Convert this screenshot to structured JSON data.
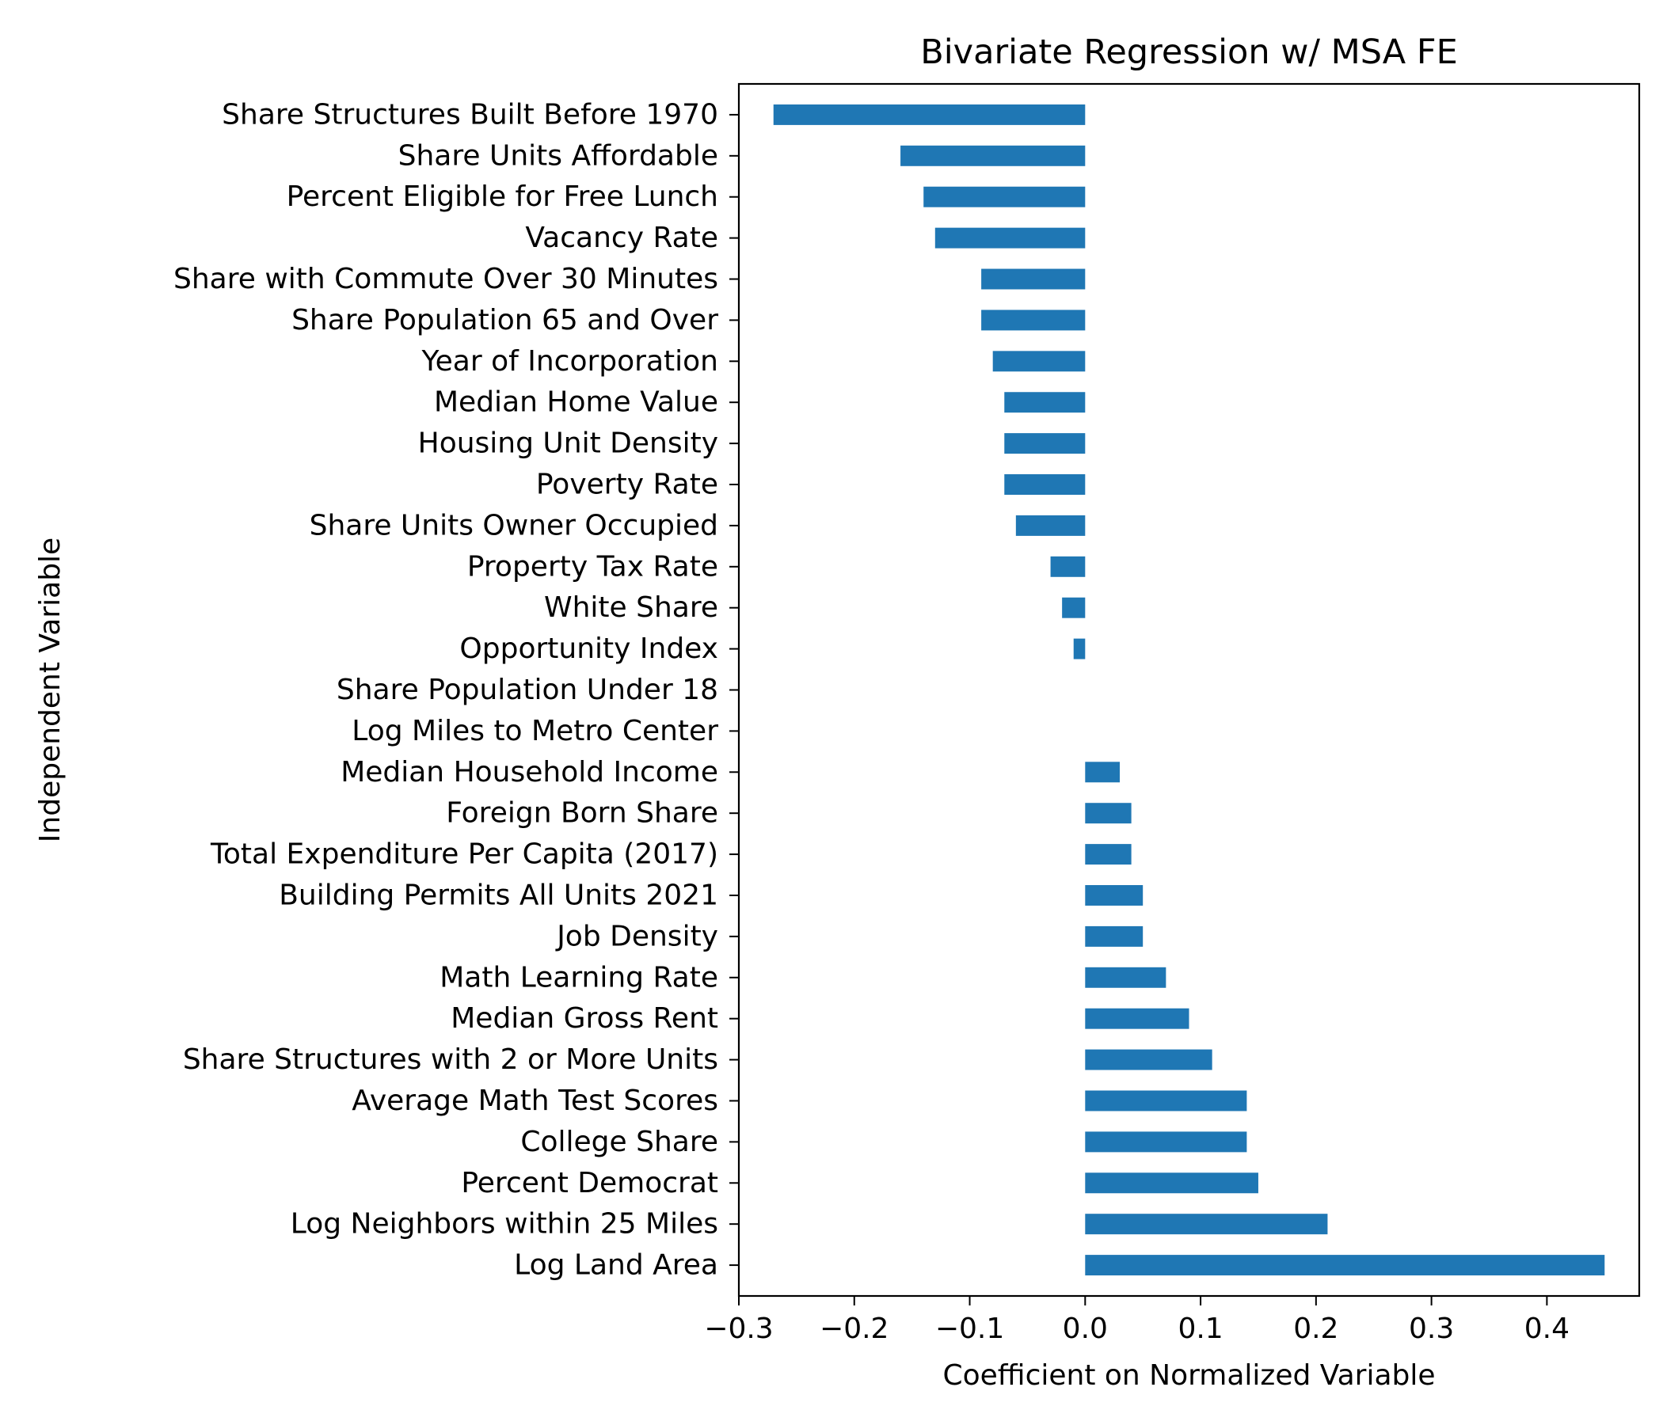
{
  "chart_data": {
    "type": "bar",
    "orientation": "horizontal",
    "title": "Bivariate Regression w/ MSA FE",
    "xlabel": "Coefficient on Normalized Variable",
    "ylabel": "Independent Variable",
    "xlim": [
      -0.3,
      0.48
    ],
    "xticks": [
      -0.3,
      -0.2,
      -0.1,
      0.0,
      0.1,
      0.2,
      0.3,
      0.4
    ],
    "xtick_labels": [
      "−0.3",
      "−0.2",
      "−0.1",
      "0.0",
      "0.1",
      "0.2",
      "0.3",
      "0.4"
    ],
    "bar_color": "#1f77b4",
    "grid": false,
    "categories": [
      "Share Structures Built Before 1970",
      "Share Units Affordable",
      "Percent Eligible for Free Lunch",
      "Vacancy Rate",
      "Share with Commute Over 30 Minutes",
      "Share Population 65 and Over",
      "Year of Incorporation",
      "Median Home Value",
      "Housing Unit Density",
      "Poverty Rate",
      "Share Units Owner Occupied",
      "Property Tax Rate",
      "White Share",
      "Opportunity Index",
      "Share Population Under 18",
      "Log Miles to Metro Center",
      "Median Household Income",
      "Foreign Born Share",
      "Total Expenditure Per Capita (2017)",
      "Building Permits All Units 2021",
      "Job Density",
      "Math Learning Rate",
      "Median Gross Rent",
      "Share Structures with 2 or More Units",
      "Average Math Test Scores",
      "College Share",
      "Percent Democrat",
      "Log Neighbors within 25 Miles",
      "Log Land Area"
    ],
    "values": [
      -0.27,
      -0.16,
      -0.14,
      -0.13,
      -0.09,
      -0.09,
      -0.08,
      -0.07,
      -0.07,
      -0.07,
      -0.06,
      -0.03,
      -0.02,
      -0.01,
      0.0,
      0.0,
      0.03,
      0.04,
      0.04,
      0.05,
      0.05,
      0.07,
      0.09,
      0.11,
      0.14,
      0.14,
      0.15,
      0.21,
      0.45
    ]
  }
}
